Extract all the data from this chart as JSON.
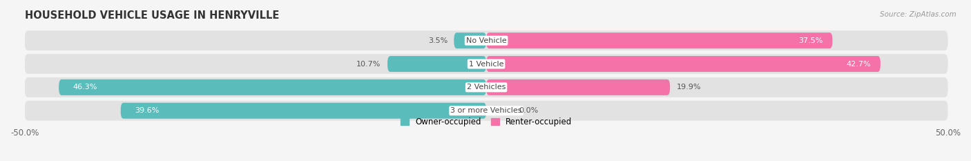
{
  "title": "HOUSEHOLD VEHICLE USAGE IN HENRYVILLE",
  "source": "Source: ZipAtlas.com",
  "categories": [
    "No Vehicle",
    "1 Vehicle",
    "2 Vehicles",
    "3 or more Vehicles"
  ],
  "owner_values": [
    3.5,
    10.7,
    46.3,
    39.6
  ],
  "renter_values": [
    37.5,
    42.7,
    19.9,
    0.0
  ],
  "owner_color": "#5bbcbc",
  "renter_color": "#f472a8",
  "renter_color_light": "#f9aac8",
  "row_bg_color": "#e8e8e8",
  "xlim_min": -50,
  "xlim_max": 50,
  "legend_owner": "Owner-occupied",
  "legend_renter": "Renter-occupied",
  "bg_color": "#f5f5f5"
}
